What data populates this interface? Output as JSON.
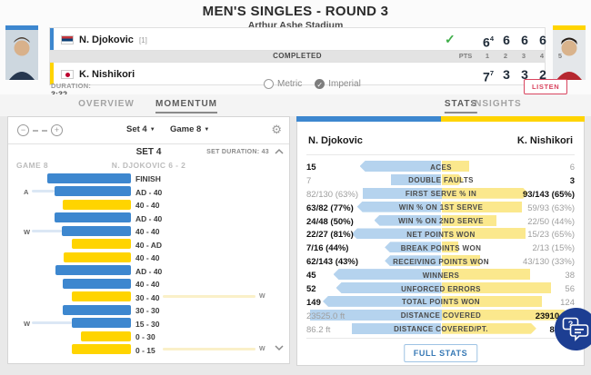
{
  "colors": {
    "p1": "#3d87cf",
    "p2": "#ffd400",
    "p1_light": "#b5d3ee",
    "p2_light": "#fbe88d",
    "p1_trail": "#dbe7f5",
    "p2_trail": "#faf0c8"
  },
  "header": {
    "title": "MEN'S SINGLES - ROUND 3",
    "venue": "Arthur Ashe Stadium",
    "status": "COMPLETED",
    "pts_label": "PTS",
    "set_columns": [
      "1",
      "2",
      "3",
      "4",
      "5"
    ],
    "duration_label": "DURATION:",
    "duration_value": "3:32",
    "unit_metric": "Metric",
    "unit_imperial": "Imperial",
    "unit_selected": "Imperial",
    "listen_label": "LISTEN",
    "players": [
      {
        "name": "N. Djokovic",
        "seed": "[1]",
        "flag": "serbia",
        "winner": true,
        "sets": [
          {
            "games": "6",
            "tiebreak": "4"
          },
          {
            "games": "6"
          },
          {
            "games": "6"
          },
          {
            "games": "6"
          }
        ]
      },
      {
        "name": "K. Nishikori",
        "seed": "",
        "flag": "japan",
        "winner": false,
        "sets": [
          {
            "games": "7",
            "tiebreak": "7"
          },
          {
            "games": "3"
          },
          {
            "games": "3"
          },
          {
            "games": "2"
          }
        ]
      }
    ]
  },
  "tabs": {
    "overview": {
      "label": "OVERVIEW",
      "active": false
    },
    "momentum": {
      "label": "MOMENTUM",
      "active": true
    },
    "stats": {
      "label": "STATS",
      "active": true
    },
    "insights": {
      "label": "INSIGHTS",
      "active": false
    }
  },
  "momentum": {
    "set_select": "Set 4",
    "game_select": "Game 8",
    "set_header": "SET 4",
    "set_duration": "SET DURATION: 43",
    "game_label": "GAME 8",
    "game_result": "N. DJOKOVIC 6 - 2",
    "rows": [
      {
        "label": "FINISH",
        "player": "p1",
        "len": 92,
        "marker": "",
        "marker_side": ""
      },
      {
        "label": "AD - 40",
        "player": "p1",
        "len": 84,
        "marker": "A",
        "marker_side": "left"
      },
      {
        "label": "40 - 40",
        "player": "p2",
        "len": 75,
        "marker": "",
        "marker_side": ""
      },
      {
        "label": "AD - 40",
        "player": "p1",
        "len": 84,
        "marker": "",
        "marker_side": ""
      },
      {
        "label": "40 - 40",
        "player": "p1",
        "len": 76,
        "marker": "W",
        "marker_side": "left"
      },
      {
        "label": "40 - AD",
        "player": "p2",
        "len": 65,
        "marker": "",
        "marker_side": ""
      },
      {
        "label": "40 - 40",
        "player": "p2",
        "len": 74,
        "marker": "",
        "marker_side": ""
      },
      {
        "label": "AD - 40",
        "player": "p1",
        "len": 83,
        "marker": "",
        "marker_side": ""
      },
      {
        "label": "40 - 40",
        "player": "p1",
        "len": 75,
        "marker": "",
        "marker_side": ""
      },
      {
        "label": "30 - 40",
        "player": "p2",
        "len": 65,
        "marker": "W",
        "marker_side": "right"
      },
      {
        "label": "30 - 30",
        "player": "p1",
        "len": 75,
        "marker": "",
        "marker_side": ""
      },
      {
        "label": "15 - 30",
        "player": "p1",
        "len": 65,
        "marker": "W",
        "marker_side": "left"
      },
      {
        "label": "0 - 30",
        "player": "p2",
        "len": 55,
        "marker": "",
        "marker_side": ""
      },
      {
        "label": "0 - 15",
        "player": "p2",
        "len": 65,
        "marker": "W",
        "marker_side": "right"
      }
    ]
  },
  "stats": {
    "p1_name": "N. Djokovic",
    "p2_name": "K. Nishikori",
    "full_stats_label": "FULL STATS",
    "rows": [
      {
        "label": "ACES",
        "p1": "15",
        "p2": "6",
        "p1_bar": 62,
        "p2_bar": 21,
        "winner": "p1"
      },
      {
        "label": "DOUBLE FAULTS",
        "p1": "7",
        "p2": "3",
        "p1_bar": 38,
        "p2_bar": 17,
        "winner": "p2"
      },
      {
        "label": "FIRST SERVE % IN",
        "p1": "82/130 (63%)",
        "p2": "93/143 (65%)",
        "p1_bar": 60,
        "p2_bar": 66,
        "winner": "p2"
      },
      {
        "label": "WIN % ON 1ST SERVE",
        "p1": "63/82 (77%)",
        "p2": "59/93 (63%)",
        "p1_bar": 64,
        "p2_bar": 61,
        "winner": "p1"
      },
      {
        "label": "WIN % ON 2ND SERVE",
        "p1": "24/48 (50%)",
        "p2": "22/50 (44%)",
        "p1_bar": 51,
        "p2_bar": 42,
        "winner": "p1"
      },
      {
        "label": "NET POINTS WON",
        "p1": "22/27 (81%)",
        "p2": "15/23 (65%)",
        "p1_bar": 68,
        "p2_bar": 64,
        "winner": "p1"
      },
      {
        "label": "BREAK POINTS WON",
        "p1": "7/16 (44%)",
        "p2": "2/13 (15%)",
        "p1_bar": 43,
        "p2_bar": 13,
        "winner": "p1"
      },
      {
        "label": "RECEIVING POINTS WON",
        "p1": "62/143 (43%)",
        "p2": "43/130 (33%)",
        "p1_bar": 43,
        "p2_bar": 29,
        "winner": "p1"
      },
      {
        "label": "WINNERS",
        "p1": "45",
        "p2": "38",
        "p1_bar": 82,
        "p2_bar": 67,
        "winner": "p1"
      },
      {
        "label": "UNFORCED ERRORS",
        "p1": "52",
        "p2": "56",
        "p1_bar": 80,
        "p2_bar": 83,
        "winner": "p1"
      },
      {
        "label": "TOTAL POINTS WON",
        "p1": "149",
        "p2": "124",
        "p1_bar": 90,
        "p2_bar": 76,
        "winner": "p1"
      },
      {
        "label": "DISTANCE COVERED",
        "p1": "23525.0 ft",
        "p2": "23910.9 ft",
        "p1_bar": 100,
        "p2_bar": 97,
        "winner": "p2"
      },
      {
        "label": "DISTANCE COVERED/PT.",
        "p1": "86.2 ft",
        "p2": "87.6 ft",
        "p1_bar": 68,
        "p2_bar": 72,
        "winner": "p2"
      }
    ]
  }
}
